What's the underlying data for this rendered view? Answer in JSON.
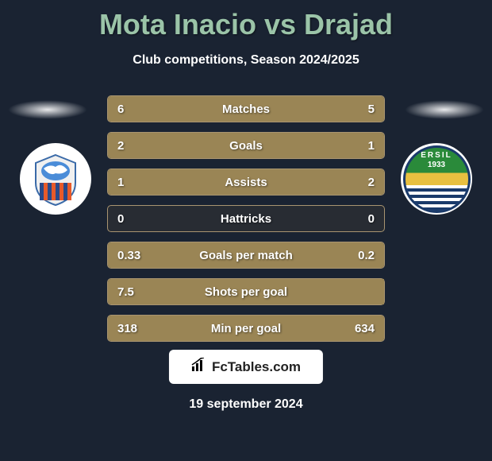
{
  "title": "Mota Inacio vs Drajad",
  "subtitle": "Club competitions, Season 2024/2025",
  "colors": {
    "background": "#1a2332",
    "title_color": "#9bc4a8",
    "text_color": "#ffffff",
    "bar_fill": "#9a8555",
    "bar_border": "#a89470"
  },
  "team_right_badge": {
    "text": "ERSIL",
    "year": "1933"
  },
  "stats": [
    {
      "label": "Matches",
      "left_value": "6",
      "right_value": "5",
      "left_pct": 54.5,
      "right_pct": 45.5
    },
    {
      "label": "Goals",
      "left_value": "2",
      "right_value": "1",
      "left_pct": 66.7,
      "right_pct": 33.3
    },
    {
      "label": "Assists",
      "left_value": "1",
      "right_value": "2",
      "left_pct": 33.3,
      "right_pct": 66.7
    },
    {
      "label": "Hattricks",
      "left_value": "0",
      "right_value": "0",
      "left_pct": 0,
      "right_pct": 0
    },
    {
      "label": "Goals per match",
      "left_value": "0.33",
      "right_value": "0.2",
      "left_pct": 62.3,
      "right_pct": 37.7
    },
    {
      "label": "Shots per goal",
      "left_value": "7.5",
      "right_value": "",
      "left_pct": 100,
      "right_pct": 0
    },
    {
      "label": "Min per goal",
      "left_value": "318",
      "right_value": "634",
      "left_pct": 33.4,
      "right_pct": 66.6
    }
  ],
  "footer": {
    "brand": "FcTables.com"
  },
  "date": "19 september 2024"
}
